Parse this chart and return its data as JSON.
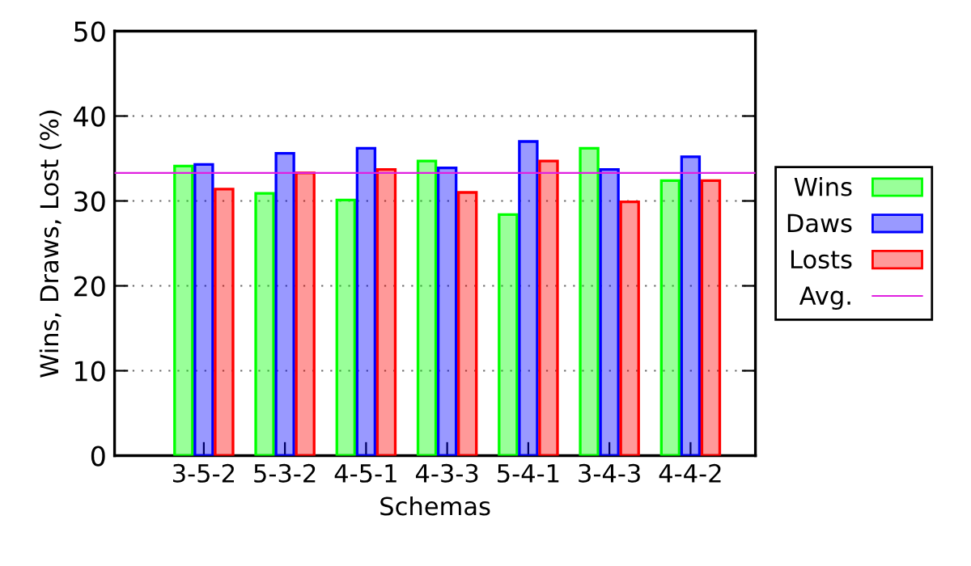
{
  "chart_data": {
    "type": "bar",
    "xlabel": "Schemas",
    "ylabel": "Wins, Draws, Lost (%)",
    "categories": [
      "3-5-2",
      "5-3-2",
      "4-5-1",
      "4-3-3",
      "5-4-1",
      "3-4-3",
      "4-4-2"
    ],
    "series": [
      {
        "name": "Wins",
        "color": "#00ff00",
        "values": [
          34.1,
          30.9,
          30.1,
          34.7,
          28.4,
          36.2,
          32.4
        ]
      },
      {
        "name": "Daws",
        "color": "#0000ff",
        "values": [
          34.3,
          35.6,
          36.2,
          33.9,
          37.0,
          33.7,
          35.2
        ]
      },
      {
        "name": "Losts",
        "color": "#ff0000",
        "values": [
          31.4,
          33.3,
          33.7,
          31.0,
          34.7,
          29.9,
          32.4
        ]
      }
    ],
    "ref_lines": [
      {
        "axis": "y",
        "value": 33.3,
        "label": "Avg.",
        "color": "#e020e0"
      }
    ],
    "ylim": [
      0,
      50
    ],
    "yticks": [
      0,
      10,
      20,
      30,
      40,
      50
    ],
    "grid": "y",
    "legend": "right"
  }
}
